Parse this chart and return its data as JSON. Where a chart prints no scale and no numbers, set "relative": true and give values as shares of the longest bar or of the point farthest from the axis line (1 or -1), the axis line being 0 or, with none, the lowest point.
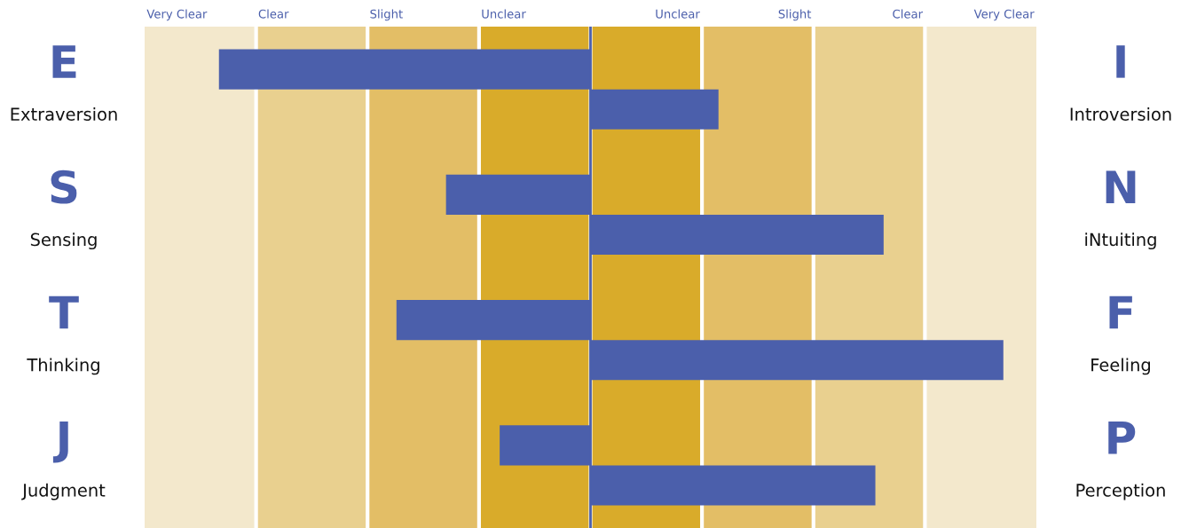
{
  "chart_data": {
    "type": "bar",
    "orientation": "horizontal",
    "relative": true,
    "categories": [
      "E\nExtraversion",
      "S\nSensing",
      "T\nThinking",
      "J\nJudgment"
    ],
    "y2_categories": [
      "I\nIntroversion",
      "N\niNtuiting",
      "F\nFeeling",
      "P\nPerception"
    ],
    "series": [
      {
        "color": "#4b5fab",
        "values": [
          -0.9,
          -0.35,
          -0.47,
          -0.22
        ]
      },
      {
        "color": "#4b5fab",
        "values": [
          0.31,
          0.71,
          1.0,
          0.69
        ]
      }
    ],
    "bands": [
      {
        "axis": "x",
        "from": -1.08,
        "to": -0.81,
        "label": "Very Clear",
        "color": "#f3e8cc"
      },
      {
        "axis": "x",
        "from": -0.81,
        "to": -0.54,
        "label": "Clear",
        "color": "#e9d08f"
      },
      {
        "axis": "x",
        "from": -0.54,
        "to": -0.27,
        "label": "Slight",
        "color": "#e3be66"
      },
      {
        "axis": "x",
        "from": -0.27,
        "to": 0,
        "label": "Unclear",
        "color": "#d9ab2a"
      },
      {
        "axis": "x",
        "from": 0,
        "to": 0.27,
        "label": "Unclear",
        "color": "#d9ab2a"
      },
      {
        "axis": "x",
        "from": 0.27,
        "to": 0.54,
        "label": "Slight",
        "color": "#e3be66"
      },
      {
        "axis": "x",
        "from": 0.54,
        "to": 0.81,
        "label": "Clear",
        "color": "#e9d08f"
      },
      {
        "axis": "x",
        "from": 0.81,
        "to": 1.08,
        "label": "Very Clear",
        "color": "#f3e8cc"
      }
    ],
    "ref_lines": [
      {
        "axis": "x",
        "value": 0,
        "color": "#4b5fab"
      }
    ]
  }
}
